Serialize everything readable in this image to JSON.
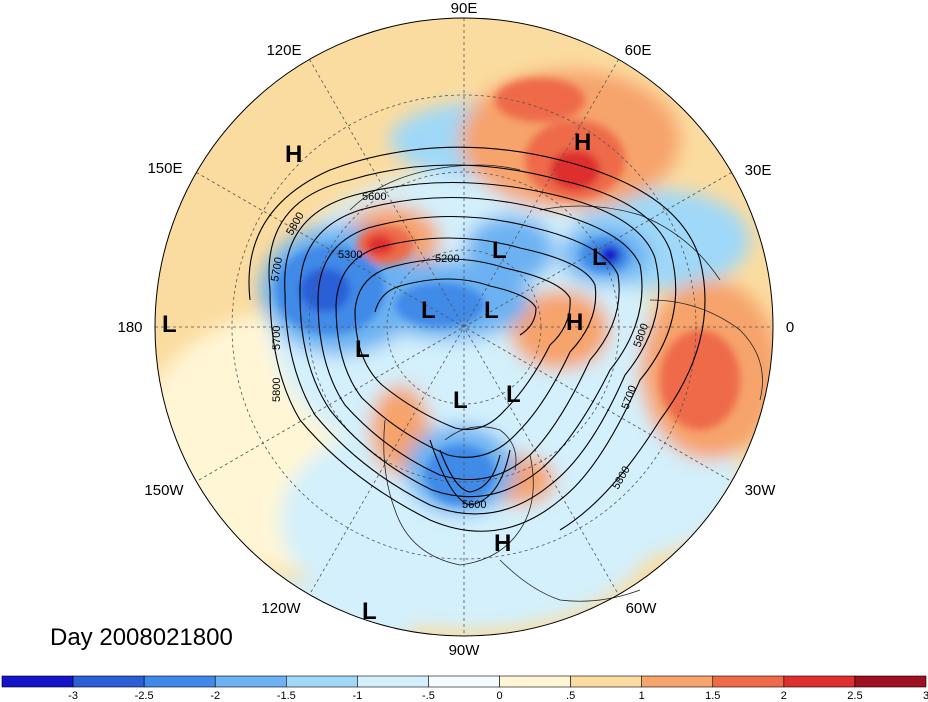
{
  "title": "Day 2008021800",
  "longitude_labels": {
    "lon_90e": "90E",
    "lon_60e": "60E",
    "lon_30e": "30E",
    "lon_0": "0",
    "lon_30w": "30W",
    "lon_60w": "60W",
    "lon_90w": "90W",
    "lon_120w": "120W",
    "lon_150w": "150W",
    "lon_180": "180",
    "lon_150e": "150E",
    "lon_120e": "120E"
  },
  "pressure_centers": {
    "h_siberia": "H",
    "h_pacific_ne": "H",
    "h_atlantic": "H",
    "h_gulf": "H",
    "l_pacific": "L",
    "l_pacific_s": "L",
    "l_aleutian": "L",
    "l_polar1": "L",
    "l_polar2": "L",
    "l_siberia": "L",
    "l_scandinavia": "L",
    "l_canada1": "L",
    "l_canada2": "L"
  },
  "contour_labels": {
    "c5200": "5200",
    "c5300": "5300",
    "c5600a": "5600",
    "c5600b": "5600",
    "c5700a": "5700",
    "c5700b": "5700",
    "c5700c": "5700",
    "c5800a": "5800",
    "c5800b": "5800",
    "c5800c": "5800",
    "c5800d": "5800"
  },
  "colorbar": {
    "ticks": [
      "-3",
      "-2.5",
      "-2",
      "-1.5",
      "-1",
      "-.5",
      "0",
      ".5",
      "1",
      "1.5",
      "2",
      "2.5",
      "3"
    ],
    "colors": [
      "#1414c8",
      "#2a5fd8",
      "#3f8ae8",
      "#6cb2f2",
      "#9fd8f8",
      "#d3f0fc",
      "#f5fcff",
      "#fff6d6",
      "#fbdca0",
      "#f6a36c",
      "#ee6a48",
      "#de2e2e",
      "#a01021"
    ]
  }
}
